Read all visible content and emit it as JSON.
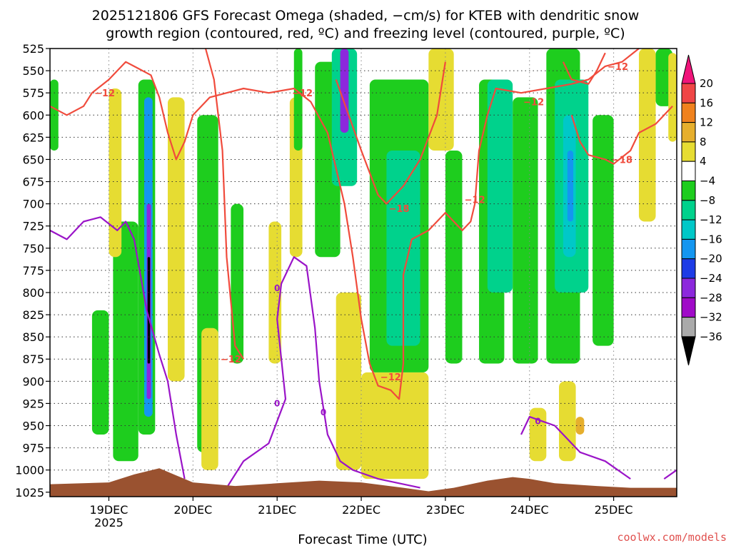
{
  "chart_data": {
    "type": "heatmap",
    "title_line1": "2025121806 GFS Forecast Omega (shaded, −cm/s) for KTEB with dendritic snow",
    "title_line2": "growth region (contoured, red, ºC) and freezing level (contoured, purple, ºC)",
    "xlabel": "Forecast Time (UTC)",
    "credit": "coolwx.com/models",
    "y_axis": {
      "ticks": [
        "525",
        "550",
        "575",
        "600",
        "625",
        "650",
        "675",
        "700",
        "725",
        "750",
        "775",
        "800",
        "825",
        "850",
        "875",
        "900",
        "925",
        "950",
        "975",
        "1000",
        "1025"
      ],
      "range": [
        525,
        1030
      ]
    },
    "x_axis": {
      "ticks": [
        "19DEC",
        "20DEC",
        "21DEC",
        "22DEC",
        "23DEC",
        "24DEC",
        "25DEC"
      ],
      "year_label": "2025",
      "range_days": [
        18.3,
        25.75
      ]
    },
    "colorbar": {
      "levels": [
        "20",
        "16",
        "12",
        "8",
        "4",
        "−4",
        "−8",
        "−12",
        "−16",
        "−20",
        "−24",
        "−28",
        "−32",
        "−36"
      ],
      "colors": [
        "#f0147a",
        "#f04646",
        "#f0821e",
        "#e6af2d",
        "#e6dc32",
        "#ffffff",
        "#1ecd1e",
        "#00d28c",
        "#00c8c8",
        "#1496f0",
        "#1e3ce6",
        "#8c28dc",
        "#a00ac8",
        "#aaaaaa",
        "#000000"
      ]
    },
    "colors": {
      "dgz_contour": "#f04b3c",
      "freezing_contour": "#9a14c8",
      "terrain": "#9a5230",
      "gridline": "#333333"
    },
    "contour_labels": {
      "dgz": [
        "−12",
        "−12",
        "−12",
        "−18",
        "−12",
        "−12",
        "−12",
        "−18",
        "−12"
      ],
      "freezing": [
        "0",
        "0",
        "0",
        "0"
      ]
    },
    "omega_cells": [
      {
        "t": [
          19.35,
          19.55
        ],
        "p": [
          560,
          960
        ],
        "lvl": -8
      },
      {
        "t": [
          19.42,
          19.52
        ],
        "p": [
          580,
          940
        ],
        "lvl": -20
      },
      {
        "t": [
          19.45,
          19.5
        ],
        "p": [
          700,
          920
        ],
        "lvl": -28
      },
      {
        "t": [
          19.46,
          19.49
        ],
        "p": [
          760,
          880
        ],
        "lvl": -36
      },
      {
        "t": [
          19.05,
          19.35
        ],
        "p": [
          720,
          990
        ],
        "lvl": -8
      },
      {
        "t": [
          18.3,
          18.4
        ],
        "p": [
          560,
          640
        ],
        "lvl": -8
      },
      {
        "t": [
          18.8,
          19.0
        ],
        "p": [
          820,
          960
        ],
        "lvl": -4
      },
      {
        "t": [
          19.0,
          19.15
        ],
        "p": [
          570,
          760
        ],
        "lvl": 4
      },
      {
        "t": [
          19.7,
          19.9
        ],
        "p": [
          580,
          900
        ],
        "lvl": 4
      },
      {
        "t": [
          20.05,
          20.3
        ],
        "p": [
          600,
          980
        ],
        "lvl": -8
      },
      {
        "t": [
          20.1,
          20.3
        ],
        "p": [
          840,
          1000
        ],
        "lvl": 4
      },
      {
        "t": [
          20.45,
          20.6
        ],
        "p": [
          700,
          880
        ],
        "lvl": -8
      },
      {
        "t": [
          20.9,
          21.05
        ],
        "p": [
          720,
          880
        ],
        "lvl": 4
      },
      {
        "t": [
          21.15,
          21.3
        ],
        "p": [
          580,
          760
        ],
        "lvl": 4
      },
      {
        "t": [
          21.2,
          21.3
        ],
        "p": [
          525,
          640
        ],
        "lvl": -8
      },
      {
        "t": [
          21.45,
          21.75
        ],
        "p": [
          540,
          760
        ],
        "lvl": -8
      },
      {
        "t": [
          21.65,
          21.95
        ],
        "p": [
          525,
          680
        ],
        "lvl": -12
      },
      {
        "t": [
          21.75,
          21.85
        ],
        "p": [
          525,
          620
        ],
        "lvl": -28
      },
      {
        "t": [
          21.7,
          22.0
        ],
        "p": [
          800,
          1000
        ],
        "lvl": 4
      },
      {
        "t": [
          22.0,
          22.8
        ],
        "p": [
          890,
          1010
        ],
        "lvl": 4
      },
      {
        "t": [
          22.1,
          22.8
        ],
        "p": [
          560,
          890
        ],
        "lvl": -8
      },
      {
        "t": [
          22.3,
          22.7
        ],
        "p": [
          640,
          860
        ],
        "lvl": -12
      },
      {
        "t": [
          22.8,
          23.1
        ],
        "p": [
          525,
          640
        ],
        "lvl": 4
      },
      {
        "t": [
          23.0,
          23.2
        ],
        "p": [
          640,
          880
        ],
        "lvl": -8
      },
      {
        "t": [
          23.4,
          23.7
        ],
        "p": [
          560,
          880
        ],
        "lvl": -8
      },
      {
        "t": [
          23.5,
          23.8
        ],
        "p": [
          560,
          800
        ],
        "lvl": -12
      },
      {
        "t": [
          23.8,
          24.1
        ],
        "p": [
          580,
          880
        ],
        "lvl": -8
      },
      {
        "t": [
          24.2,
          24.6
        ],
        "p": [
          525,
          880
        ],
        "lvl": -8
      },
      {
        "t": [
          24.3,
          24.7
        ],
        "p": [
          560,
          800
        ],
        "lvl": -12
      },
      {
        "t": [
          24.4,
          24.55
        ],
        "p": [
          600,
          760
        ],
        "lvl": -16
      },
      {
        "t": [
          24.45,
          24.52
        ],
        "p": [
          640,
          720
        ],
        "lvl": -20
      },
      {
        "t": [
          24.0,
          24.2
        ],
        "p": [
          930,
          990
        ],
        "lvl": 4
      },
      {
        "t": [
          24.35,
          24.55
        ],
        "p": [
          900,
          990
        ],
        "lvl": 4
      },
      {
        "t": [
          24.55,
          24.65
        ],
        "p": [
          940,
          960
        ],
        "lvl": 8
      },
      {
        "t": [
          24.75,
          25.0
        ],
        "p": [
          600,
          860
        ],
        "lvl": -8
      },
      {
        "t": [
          25.3,
          25.5
        ],
        "p": [
          525,
          720
        ],
        "lvl": 4
      },
      {
        "t": [
          25.5,
          25.7
        ],
        "p": [
          525,
          590
        ],
        "lvl": -8
      },
      {
        "t": [
          25.65,
          25.75
        ],
        "p": [
          530,
          630
        ],
        "lvl": 4
      }
    ],
    "dgz_lines": [
      [
        [
          18.3,
          590
        ],
        [
          18.5,
          600
        ],
        [
          18.7,
          590
        ],
        [
          18.8,
          575
        ],
        [
          19.0,
          560
        ],
        [
          19.2,
          540
        ],
        [
          19.3,
          545
        ],
        [
          19.5,
          555
        ],
        [
          19.6,
          580
        ],
        [
          19.7,
          620
        ],
        [
          19.8,
          650
        ],
        [
          19.9,
          630
        ],
        [
          20.0,
          600
        ],
        [
          20.2,
          580
        ],
        [
          20.4,
          575
        ],
        [
          20.6,
          570
        ],
        [
          20.9,
          575
        ],
        [
          21.2,
          570
        ],
        [
          21.4,
          585
        ],
        [
          21.6,
          620
        ],
        [
          21.8,
          700
        ],
        [
          21.9,
          760
        ],
        [
          22.0,
          830
        ],
        [
          22.1,
          880
        ],
        [
          22.2,
          905
        ],
        [
          22.35,
          910
        ],
        [
          22.45,
          920
        ],
        [
          22.5,
          880
        ],
        [
          22.5,
          780
        ],
        [
          22.6,
          740
        ],
        [
          22.8,
          730
        ],
        [
          23.0,
          710
        ],
        [
          23.2,
          730
        ],
        [
          23.3,
          720
        ],
        [
          23.35,
          700
        ],
        [
          23.4,
          640
        ],
        [
          23.5,
          600
        ],
        [
          23.6,
          570
        ],
        [
          23.9,
          575
        ],
        [
          24.2,
          570
        ],
        [
          24.5,
          565
        ],
        [
          24.7,
          560
        ],
        [
          24.9,
          545
        ],
        [
          25.1,
          540
        ],
        [
          25.3,
          525
        ]
      ],
      [
        [
          20.15,
          525
        ],
        [
          20.25,
          560
        ],
        [
          20.35,
          640
        ],
        [
          20.4,
          760
        ],
        [
          20.5,
          860
        ],
        [
          20.6,
          875
        ]
      ],
      [
        [
          21.7,
          560
        ],
        [
          21.85,
          600
        ],
        [
          22.0,
          640
        ],
        [
          22.2,
          690
        ],
        [
          22.3,
          700
        ],
        [
          22.4,
          690
        ],
        [
          22.5,
          680
        ],
        [
          22.7,
          650
        ],
        [
          22.9,
          600
        ],
        [
          23.0,
          540
        ]
      ],
      [
        [
          24.4,
          540
        ],
        [
          24.5,
          560
        ],
        [
          24.7,
          565
        ],
        [
          24.8,
          550
        ],
        [
          24.9,
          530
        ]
      ],
      [
        [
          24.5,
          600
        ],
        [
          24.6,
          630
        ],
        [
          24.7,
          645
        ],
        [
          24.9,
          650
        ],
        [
          25.0,
          655
        ],
        [
          25.2,
          640
        ],
        [
          25.3,
          620
        ],
        [
          25.5,
          610
        ],
        [
          25.7,
          590
        ]
      ]
    ],
    "freezing_lines": [
      [
        [
          18.3,
          730
        ],
        [
          18.5,
          740
        ],
        [
          18.7,
          720
        ],
        [
          18.9,
          715
        ],
        [
          19.1,
          730
        ],
        [
          19.2,
          720
        ],
        [
          19.3,
          740
        ],
        [
          19.45,
          820
        ],
        [
          19.6,
          870
        ],
        [
          19.7,
          900
        ],
        [
          19.8,
          960
        ],
        [
          19.9,
          1010
        ]
      ],
      [
        [
          20.4,
          1020
        ],
        [
          20.6,
          990
        ],
        [
          20.9,
          970
        ],
        [
          21.1,
          920
        ],
        [
          21.0,
          830
        ],
        [
          21.05,
          790
        ],
        [
          21.2,
          760
        ],
        [
          21.35,
          770
        ],
        [
          21.45,
          840
        ],
        [
          21.5,
          900
        ],
        [
          21.6,
          960
        ],
        [
          21.75,
          990
        ],
        [
          21.9,
          1000
        ],
        [
          22.2,
          1010
        ],
        [
          22.7,
          1020
        ]
      ],
      [
        [
          23.9,
          960
        ],
        [
          24.0,
          940
        ],
        [
          24.3,
          950
        ],
        [
          24.6,
          980
        ],
        [
          24.9,
          990
        ],
        [
          25.2,
          1010
        ]
      ],
      [
        [
          25.6,
          1010
        ],
        [
          25.75,
          1000
        ]
      ]
    ],
    "terrain_profile": [
      [
        18.3,
        1016
      ],
      [
        19.0,
        1014
      ],
      [
        19.3,
        1005
      ],
      [
        19.6,
        998
      ],
      [
        19.8,
        1006
      ],
      [
        20.0,
        1014
      ],
      [
        20.5,
        1018
      ],
      [
        21.0,
        1015
      ],
      [
        21.5,
        1012
      ],
      [
        22.0,
        1014
      ],
      [
        22.5,
        1020
      ],
      [
        22.8,
        1024
      ],
      [
        23.1,
        1020
      ],
      [
        23.5,
        1012
      ],
      [
        23.8,
        1008
      ],
      [
        24.0,
        1010
      ],
      [
        24.3,
        1015
      ],
      [
        24.8,
        1018
      ],
      [
        25.2,
        1020
      ],
      [
        25.75,
        1020
      ]
    ]
  }
}
